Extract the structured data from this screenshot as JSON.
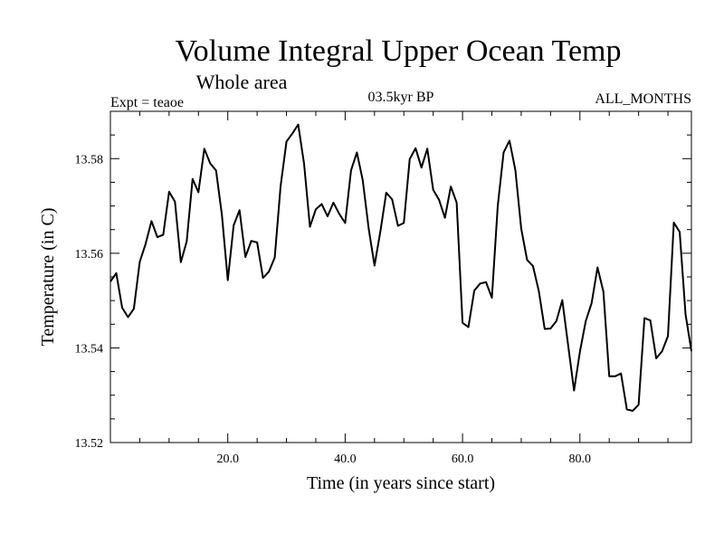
{
  "chart_data": {
    "type": "line",
    "title": "Volume Integral Upper Ocean Temp",
    "subtitle": "Whole area",
    "left_note": "Expt = teaoe",
    "center_note": "03.5kyr BP",
    "right_note": "ALL_MONTHS",
    "xlabel": "Time (in years since start)",
    "ylabel": "Temperature (in C)",
    "xlim": [
      0,
      99
    ],
    "ylim": [
      13.52,
      13.59
    ],
    "x_ticks": [
      20,
      40,
      60,
      80
    ],
    "x_tick_labels": [
      "20.0",
      "40.0",
      "60.0",
      "80.0"
    ],
    "y_ticks": [
      13.52,
      13.54,
      13.56,
      13.58
    ],
    "y_tick_labels": [
      "13.52",
      "13.54",
      "13.56",
      "13.58"
    ],
    "series": [
      {
        "name": "teaoe",
        "x": [
          0,
          1,
          2,
          3,
          4,
          5,
          6,
          7,
          8,
          9,
          10,
          11,
          12,
          13,
          14,
          15,
          16,
          17,
          18,
          19,
          20,
          21,
          22,
          23,
          24,
          25,
          26,
          27,
          28,
          29,
          30,
          31,
          32,
          33,
          34,
          35,
          36,
          37,
          38,
          39,
          40,
          41,
          42,
          43,
          44,
          45,
          46,
          47,
          48,
          49,
          50,
          51,
          52,
          53,
          54,
          55,
          56,
          57,
          58,
          59,
          60,
          61,
          62,
          63,
          64,
          65,
          66,
          67,
          68,
          69,
          70,
          71,
          72,
          73,
          74,
          75,
          76,
          77,
          78,
          79,
          80,
          81,
          82,
          83,
          84,
          85,
          86,
          87,
          88,
          89,
          90,
          91,
          92,
          93,
          94,
          95,
          96,
          97,
          98,
          99
        ],
        "values": [
          13.554,
          13.5558,
          13.5485,
          13.5465,
          13.5483,
          13.5582,
          13.562,
          13.5668,
          13.5634,
          13.5639,
          13.573,
          13.5709,
          13.5581,
          13.5625,
          13.5757,
          13.5729,
          13.5821,
          13.579,
          13.5775,
          13.5681,
          13.5543,
          13.5659,
          13.5691,
          13.5592,
          13.5626,
          13.5623,
          13.5548,
          13.5561,
          13.5591,
          13.5742,
          13.5836,
          13.5853,
          13.5872,
          13.5789,
          13.5656,
          13.5693,
          13.5704,
          13.5678,
          13.5707,
          13.5683,
          13.5664,
          13.5775,
          13.5813,
          13.5754,
          13.5653,
          13.5574,
          13.5646,
          13.5728,
          13.5714,
          13.5658,
          13.5664,
          13.5799,
          13.5822,
          13.5781,
          13.5821,
          13.5734,
          13.5713,
          13.5675,
          13.5741,
          13.5707,
          13.5453,
          13.5444,
          13.5521,
          13.5536,
          13.5539,
          13.5506,
          13.57,
          13.5813,
          13.5838,
          13.5776,
          13.5652,
          13.5586,
          13.5573,
          13.552,
          13.544,
          13.5441,
          13.5457,
          13.5501,
          13.5405,
          13.531,
          13.5392,
          13.5457,
          13.5495,
          13.557,
          13.5519,
          13.534,
          13.534,
          13.5346,
          13.527,
          13.5267,
          13.528,
          13.5463,
          13.5458,
          13.5378,
          13.5393,
          13.5425,
          13.5665,
          13.5645,
          13.5471,
          13.5393
        ]
      }
    ]
  }
}
